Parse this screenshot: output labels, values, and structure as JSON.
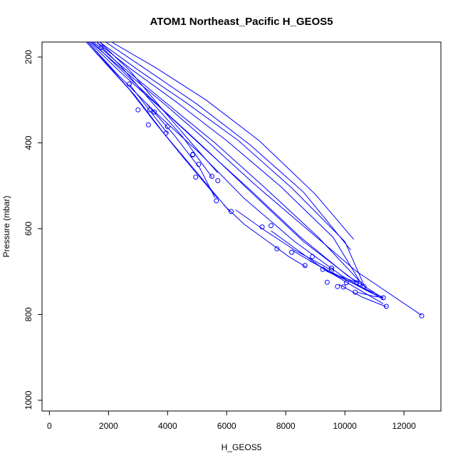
{
  "chart_data": {
    "type": "line",
    "title": "ATOM1 Northeast_Pacific H_GEOS5",
    "xlabel": "H_GEOS5",
    "ylabel": "Pressure (mbar)",
    "xlim": [
      -250,
      13250
    ],
    "ylim": [
      1025,
      165
    ],
    "y_reversed": true,
    "x_ticks": [
      0,
      2000,
      4000,
      6000,
      8000,
      10000,
      12000
    ],
    "x_tick_labels": [
      "0",
      "2000",
      "4000",
      "6000",
      "8000",
      "10000",
      "12000"
    ],
    "y_ticks": [
      200,
      400,
      600,
      800,
      1000
    ],
    "y_tick_labels": [
      "200",
      "400",
      "600",
      "800",
      "1000"
    ],
    "grid": false,
    "color": "#0000ff",
    "series": [
      {
        "x": [
          1400,
          2500,
          3900,
          5400,
          7000,
          8700,
          10400,
          12600
        ],
        "y": [
          165,
          230,
          310,
          400,
          500,
          600,
          700,
          802
        ]
      },
      {
        "x": [
          1350,
          2400,
          3700,
          5200,
          6800,
          8500,
          10100,
          11300
        ],
        "y": [
          165,
          235,
          315,
          410,
          510,
          620,
          710,
          762
        ]
      },
      {
        "x": [
          1300,
          2300,
          3600,
          5100,
          6600,
          8300,
          9900,
          11300
        ],
        "y": [
          165,
          240,
          330,
          425,
          530,
          630,
          710,
          765
        ]
      },
      {
        "x": [
          1500,
          2600,
          4000,
          5600,
          7300,
          9100,
          10600
        ],
        "y": [
          165,
          230,
          310,
          400,
          505,
          620,
          730
        ]
      },
      {
        "x": [
          1450,
          2500,
          3800,
          5300,
          6900,
          8600,
          10400
        ],
        "y": [
          165,
          235,
          320,
          415,
          520,
          630,
          725
        ]
      },
      {
        "x": [
          1600,
          2800,
          4300,
          6000,
          7800,
          9600,
          10500
        ],
        "y": [
          165,
          230,
          305,
          395,
          500,
          620,
          722
        ]
      },
      {
        "x": [
          1700,
          3000,
          4600,
          6400,
          8200,
          10000,
          10700
        ],
        "y": [
          165,
          230,
          305,
          395,
          505,
          630,
          740
        ]
      },
      {
        "x": [
          1900,
          3300,
          5000,
          6800,
          8600,
          10200
        ],
        "y": [
          165,
          230,
          310,
          405,
          515,
          650
        ]
      },
      {
        "x": [
          2100,
          3600,
          5300,
          7100,
          9000,
          10300
        ],
        "y": [
          165,
          225,
          300,
          395,
          520,
          625
        ]
      },
      {
        "x": [
          1300,
          2000,
          2900,
          3900,
          5000,
          6100
        ],
        "y": [
          165,
          220,
          290,
          380,
          470,
          560
        ]
      },
      {
        "x": [
          1250,
          1900,
          2700,
          3600,
          4600,
          5700
        ],
        "y": [
          165,
          215,
          275,
          355,
          440,
          530
        ]
      },
      {
        "x": [
          1600,
          2400,
          3400,
          4500,
          5500
        ],
        "y": [
          165,
          220,
          300,
          385,
          480
        ]
      },
      {
        "x": [
          1700,
          2700,
          3800,
          4800,
          5700
        ],
        "y": [
          165,
          230,
          320,
          400,
          470
        ]
      },
      {
        "x": [
          3300,
          4200,
          5100,
          5600
        ],
        "y": [
          310,
          380,
          460,
          528
        ]
      },
      {
        "x": [
          5900,
          6600,
          7400,
          8100,
          8700
        ],
        "y": [
          545,
          590,
          630,
          665,
          690
        ]
      },
      {
        "x": [
          6300,
          7200,
          8300,
          9500
        ],
        "y": [
          556,
          600,
          650,
          695
        ]
      },
      {
        "x": [
          7500,
          8400,
          9400,
          10400
        ],
        "y": [
          605,
          650,
          700,
          725
        ]
      },
      {
        "x": [
          8200,
          9200,
          10300,
          11300
        ],
        "y": [
          650,
          690,
          735,
          775
        ]
      },
      {
        "x": [
          8800,
          9800,
          10900,
          11300
        ],
        "y": [
          675,
          710,
          750,
          760
        ]
      },
      {
        "x": [
          9400,
          10300,
          11000
        ],
        "y": [
          700,
          728,
          750
        ]
      },
      {
        "x": [
          9800,
          10600,
          11400
        ],
        "y": [
          730,
          760,
          782
        ]
      },
      {
        "x": [
          10400,
          11000,
          11300
        ],
        "y": [
          748,
          758,
          760
        ]
      },
      {
        "x": [
          2700,
          3400,
          4000
        ],
        "y": [
          263,
          325,
          378
        ]
      }
    ],
    "points": {
      "x": [
        1750,
        2700,
        3000,
        3350,
        3400,
        3550,
        4000,
        3950,
        4850,
        5050,
        4950,
        5500,
        5700,
        5650,
        6150,
        7200,
        7500,
        7700,
        8200,
        8650,
        8900,
        9250,
        9400,
        9550,
        9550,
        9750,
        9950,
        10050,
        10350,
        10400,
        10500,
        10650,
        11300,
        11400,
        12600,
        4850
      ],
      "y": [
        178,
        263,
        323,
        358,
        323,
        328,
        362,
        377,
        427,
        450,
        480,
        478,
        488,
        535,
        560,
        596,
        593,
        647,
        655,
        686,
        665,
        695,
        725,
        692,
        697,
        735,
        736,
        726,
        748,
        726,
        728,
        735,
        761,
        781,
        803,
        428
      ]
    }
  }
}
